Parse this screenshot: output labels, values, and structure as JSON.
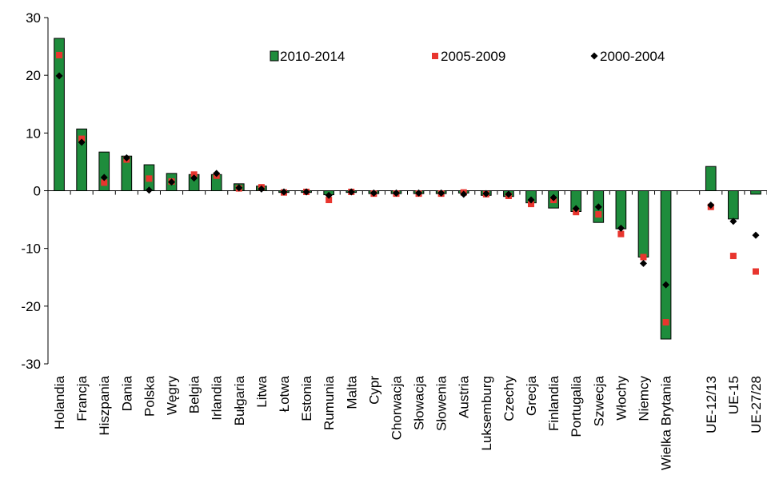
{
  "chart_data": {
    "type": "bar",
    "categories": [
      "Holandia",
      "Francja",
      "Hiszpania",
      "Dania",
      "Polska",
      "Węgry",
      "Belgia",
      "Irlandia",
      "Bułgaria",
      "Litwa",
      "Łotwa",
      "Estonia",
      "Rumunia",
      "Malta",
      "Cypr",
      "Chorwacja",
      "Słowacja",
      "Słowenia",
      "Austria",
      "Luksemburg",
      "Czechy",
      "Grecja",
      "Finlandia",
      "Portugalia",
      "Szwecja",
      "Włochy",
      "Niemcy",
      "Wielka Brytania",
      "",
      "UE-12/13",
      "UE-15",
      "UE-27/28"
    ],
    "series": [
      {
        "name": "2010-2014",
        "mark": "bar",
        "color": "#1e8c3c",
        "values": [
          26.4,
          10.7,
          6.7,
          6.0,
          4.5,
          3.0,
          2.8,
          2.8,
          1.2,
          0.8,
          -0.3,
          -0.3,
          -0.7,
          -0.3,
          -0.5,
          -0.5,
          -0.5,
          -0.5,
          -0.4,
          -0.8,
          -1.0,
          -2.1,
          -3.0,
          -3.6,
          -5.5,
          -6.6,
          -11.5,
          -25.7,
          null,
          4.2,
          -4.9,
          -0.6
        ]
      },
      {
        "name": "2005-2009",
        "mark": "square",
        "color": "#e8352e",
        "values": [
          23.5,
          9.0,
          1.4,
          5.4,
          2.1,
          1.6,
          2.8,
          2.6,
          0.4,
          0.6,
          -0.3,
          -0.2,
          -1.6,
          -0.2,
          -0.5,
          -0.5,
          -0.5,
          -0.5,
          -0.3,
          -0.6,
          -0.9,
          -2.3,
          -1.6,
          -3.7,
          -4.1,
          -7.5,
          -11.5,
          -22.8,
          null,
          -2.8,
          -11.3,
          -14.0
        ]
      },
      {
        "name": "2000-2004",
        "mark": "diamond",
        "color": "#000000",
        "values": [
          19.9,
          8.4,
          2.3,
          5.7,
          0.1,
          1.5,
          2.2,
          3.0,
          0.5,
          0.3,
          -0.2,
          -0.2,
          -0.8,
          -0.2,
          -0.4,
          -0.4,
          -0.4,
          -0.4,
          -0.6,
          -0.5,
          -0.6,
          -1.6,
          -1.2,
          -3.1,
          -2.8,
          -6.5,
          -12.6,
          -16.3,
          null,
          -2.5,
          -5.3,
          -7.7
        ]
      }
    ],
    "ylim": [
      -30,
      30
    ],
    "yticks": [
      -30,
      -20,
      -10,
      0,
      10,
      20,
      30
    ],
    "grid": false,
    "legend_position": "top"
  }
}
